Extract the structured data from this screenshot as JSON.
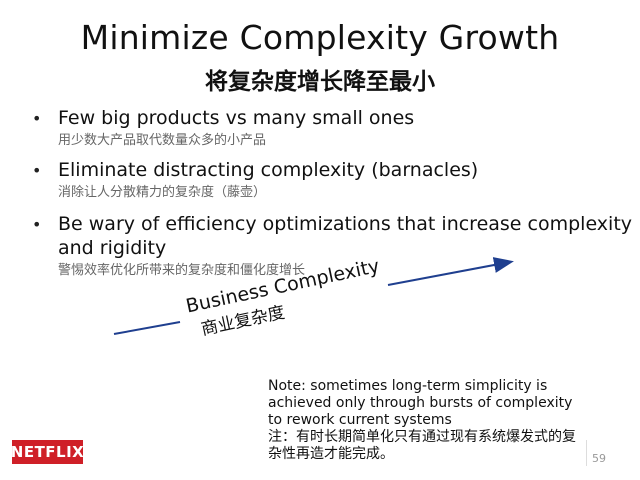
{
  "slide": {
    "title": "Minimize Complexity Growth",
    "subtitle": "将复杂度增长降至最小",
    "bullets": [
      {
        "en": "Few big products vs many small ones",
        "cn": "用少数大产品取代数量众多的小产品"
      },
      {
        "en": "Eliminate distracting complexity (barnacles)",
        "cn": "消除让人分散精力的复杂度（藤壶）"
      },
      {
        "en": "Be wary of efficiency optimizations that increase complexity and rigidity",
        "cn": "警惕效率优化所带来的复杂度和僵化度增长"
      }
    ],
    "bullet_glyph": "•",
    "arrow_label": {
      "en": "Business Complexity",
      "cn": "商业复杂度"
    },
    "note": {
      "en": "Note: sometimes long-term simplicity is achieved only through bursts of complexity to rework current systems",
      "cn": "注：有时长期简单化只有通过现有系统爆发式的复杂性再造才能完成。"
    },
    "logo_text": "NETFLIX",
    "page_number": "59"
  },
  "colors": {
    "logo_red": "#cf1f27",
    "arrow": "#1f3f8f"
  }
}
